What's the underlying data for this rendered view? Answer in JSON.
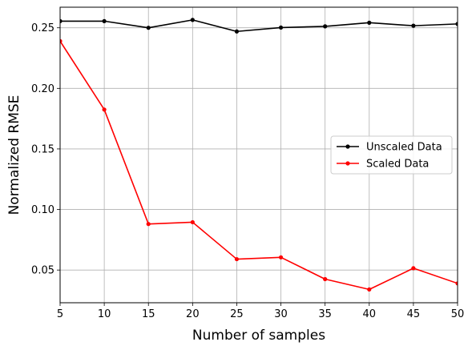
{
  "chart_data": {
    "type": "line",
    "title": "",
    "xlabel": "Number of samples",
    "ylabel": "Normalized RMSE",
    "x": [
      5,
      10,
      15,
      20,
      25,
      30,
      35,
      40,
      45,
      50
    ],
    "xlim": [
      5,
      50
    ],
    "ylim": [
      0.023,
      0.267
    ],
    "xticks": [
      5,
      10,
      15,
      20,
      25,
      30,
      35,
      40,
      45,
      50
    ],
    "xtick_labels": [
      "5",
      "10",
      "15",
      "20",
      "25",
      "30",
      "35",
      "40",
      "45",
      "50"
    ],
    "yticks": [
      0.05,
      0.1,
      0.15,
      0.2,
      0.25
    ],
    "ytick_labels": [
      "0.05",
      "0.10",
      "0.15",
      "0.20",
      "0.25"
    ],
    "grid": true,
    "legend_position": "center-right",
    "series": [
      {
        "name": "Unscaled Data",
        "color": "#000000",
        "values": [
          0.2555,
          0.2555,
          0.25,
          0.2565,
          0.247,
          0.2502,
          0.2512,
          0.2542,
          0.2517,
          0.2532
        ]
      },
      {
        "name": "Scaled Data",
        "color": "#ff0000",
        "values": [
          0.239,
          0.1825,
          0.088,
          0.0895,
          0.059,
          0.0605,
          0.0425,
          0.034,
          0.0515,
          0.039
        ]
      }
    ]
  }
}
